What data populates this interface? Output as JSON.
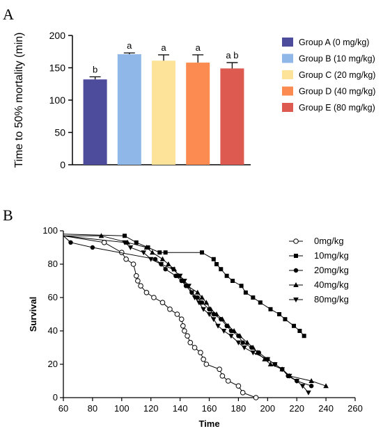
{
  "panels": {
    "a_letter": "A",
    "b_letter": "B"
  },
  "chart_data": [
    {
      "type": "bar",
      "ylabel": "Time to 50% mortality (min)",
      "ylim": [
        0,
        200
      ],
      "yticks": [
        "0",
        "50",
        "100",
        "150",
        "200"
      ],
      "legend_position": "right",
      "grid": false,
      "categories": [
        "Group A (0 mg/kg)",
        "Group B (10 mg/kg)",
        "Group C (20 mg/kg)",
        "Group D (40 mg/kg)",
        "Group E (80 mg/kg)"
      ],
      "values": [
        132,
        171,
        161,
        158,
        149
      ],
      "errors": [
        4,
        2,
        9,
        12,
        9
      ],
      "significance": [
        "b",
        "a",
        "a",
        "a",
        "a b"
      ],
      "colors": [
        "#4d4b9c",
        "#8fb8e8",
        "#fde39a",
        "#fb8b50",
        "#dc5a4f"
      ]
    },
    {
      "type": "line",
      "ylabel": "Survival",
      "xlabel": "Time",
      "xlim": [
        60,
        260
      ],
      "ylim": [
        0,
        100
      ],
      "xticks": [
        "60",
        "80",
        "100",
        "120",
        "140",
        "160",
        "180",
        "200",
        "220",
        "240",
        "260"
      ],
      "yticks": [
        "0",
        "20",
        "40",
        "60",
        "80",
        "100"
      ],
      "legend_position": "right",
      "grid": false,
      "series": [
        {
          "name": "0mg/kg",
          "marker": "open-circle",
          "x": [
            60,
            88,
            100,
            103,
            108,
            110,
            111,
            113,
            117,
            122,
            128,
            133,
            138,
            141,
            142,
            143,
            145,
            147,
            150,
            154,
            156,
            158,
            167,
            169,
            173,
            180,
            183,
            192
          ],
          "y": [
            97,
            93,
            87,
            83,
            80,
            73,
            70,
            67,
            63,
            60,
            57,
            53,
            50,
            47,
            43,
            40,
            37,
            33,
            30,
            27,
            23,
            20,
            17,
            13,
            10,
            7,
            3,
            0
          ]
        },
        {
          "name": "10mg/kg",
          "marker": "filled-square",
          "x": [
            60,
            102,
            110,
            118,
            126,
            130,
            155,
            163,
            165,
            168,
            172,
            176,
            182,
            185,
            190,
            195,
            202,
            208,
            212,
            218,
            222,
            225
          ],
          "y": [
            98,
            97,
            93,
            90,
            87,
            87,
            87,
            83,
            80,
            77,
            73,
            70,
            67,
            63,
            60,
            57,
            53,
            50,
            47,
            43,
            40,
            37
          ]
        },
        {
          "name": "20mg/kg",
          "marker": "filled-circle",
          "x": [
            60,
            65,
            80,
            123,
            127,
            130,
            137,
            141,
            144,
            148,
            152,
            155,
            160,
            163,
            168,
            172,
            175,
            180,
            183,
            189,
            194,
            200,
            205,
            210,
            214,
            220,
            230
          ],
          "y": [
            97,
            93,
            90,
            83,
            80,
            77,
            73,
            70,
            67,
            63,
            60,
            57,
            53,
            50,
            47,
            43,
            40,
            37,
            33,
            30,
            27,
            23,
            20,
            17,
            13,
            10,
            7
          ]
        },
        {
          "name": "40mg/kg",
          "marker": "filled-triangle-up",
          "x": [
            60,
            86,
            104,
            117,
            121,
            128,
            132,
            136,
            139,
            142,
            145,
            152,
            155,
            158,
            161,
            165,
            169,
            173,
            177,
            181,
            186,
            190,
            193,
            198,
            202,
            210,
            215,
            230,
            240
          ],
          "y": [
            97,
            97,
            93,
            90,
            87,
            83,
            80,
            77,
            73,
            70,
            67,
            63,
            60,
            57,
            53,
            50,
            47,
            43,
            40,
            37,
            33,
            30,
            27,
            23,
            20,
            17,
            13,
            10,
            7
          ]
        },
        {
          "name": "80mg/kg",
          "marker": "filled-triangle-down",
          "x": [
            60,
            102,
            106,
            115,
            120,
            127,
            135,
            140,
            143,
            146,
            148,
            150,
            153,
            156,
            160,
            163,
            166,
            170,
            175,
            180,
            184,
            190,
            200,
            205,
            210,
            215,
            220,
            224,
            228
          ],
          "y": [
            97,
            93,
            90,
            87,
            83,
            80,
            77,
            73,
            70,
            67,
            63,
            60,
            57,
            53,
            50,
            47,
            43,
            40,
            37,
            33,
            30,
            27,
            23,
            20,
            17,
            13,
            10,
            7,
            3
          ]
        }
      ]
    }
  ]
}
